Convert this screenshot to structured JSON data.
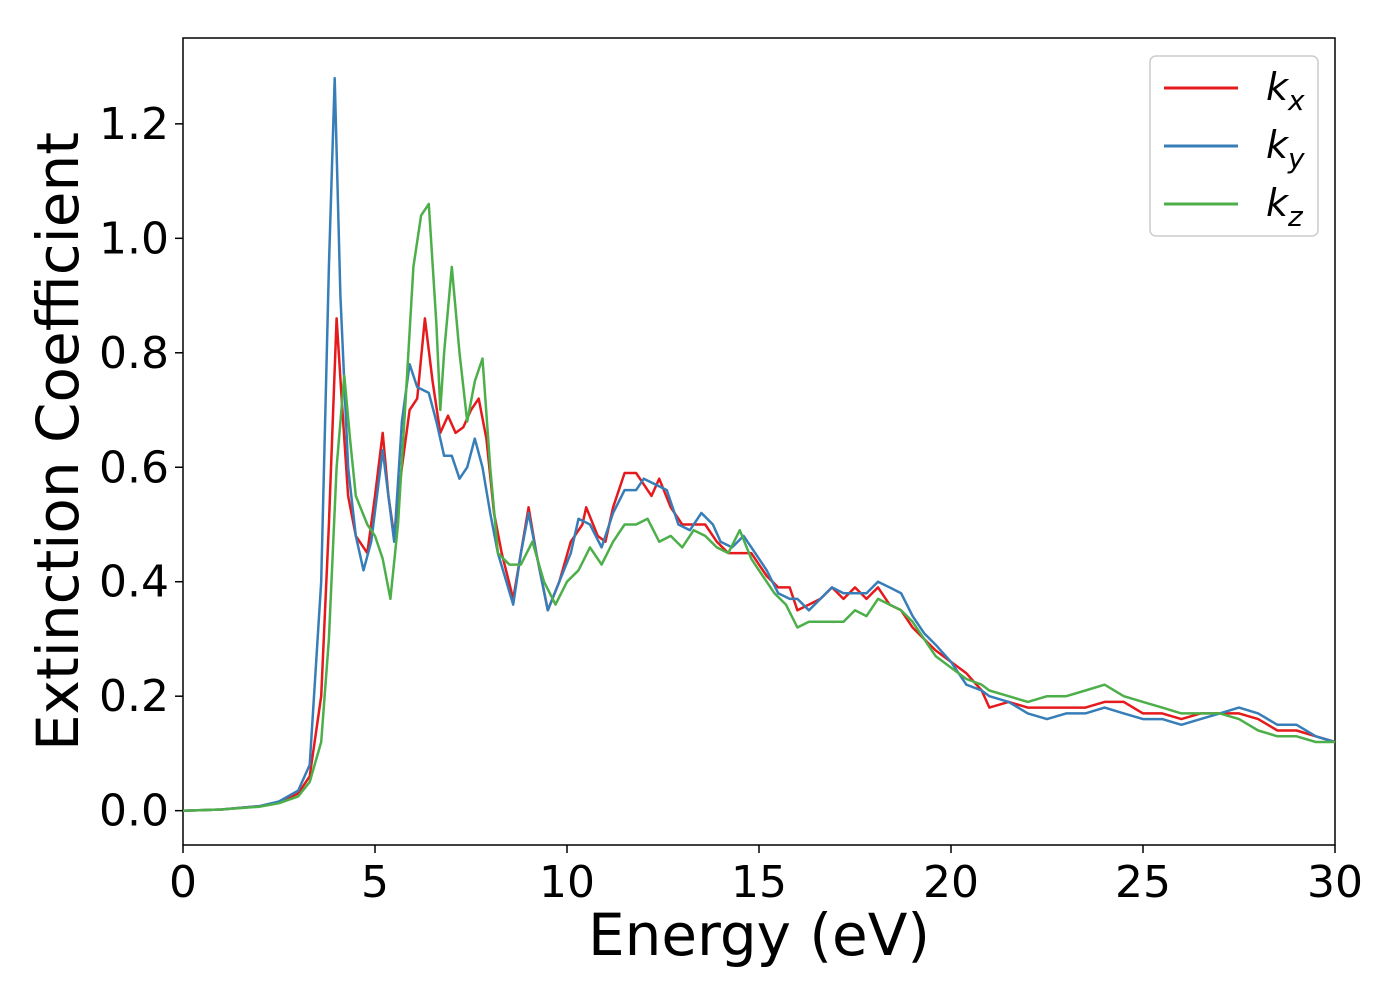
{
  "chart_data": {
    "type": "line",
    "title": "",
    "xlabel": "Energy (eV)",
    "ylabel": "Extinction Coefficient",
    "xlim": [
      0,
      30
    ],
    "ylim": [
      -0.06,
      1.35
    ],
    "xticks": [
      0,
      5,
      10,
      15,
      20,
      25,
      30
    ],
    "xtick_labels": [
      "0",
      "5",
      "10",
      "15",
      "20",
      "25",
      "30"
    ],
    "yticks": [
      0.0,
      0.2,
      0.4,
      0.6,
      0.8,
      1.0,
      1.2
    ],
    "ytick_labels": [
      "0.0",
      "0.2",
      "0.4",
      "0.6",
      "0.8",
      "1.0",
      "1.2"
    ],
    "grid": false,
    "legend_position": "top-right",
    "series": [
      {
        "name": "k",
        "subscript": "x",
        "color": "#e41a1c",
        "points": [
          [
            0,
            0.0
          ],
          [
            1,
            0.002
          ],
          [
            2,
            0.008
          ],
          [
            2.5,
            0.015
          ],
          [
            3,
            0.03
          ],
          [
            3.3,
            0.06
          ],
          [
            3.6,
            0.2
          ],
          [
            3.8,
            0.5
          ],
          [
            4.0,
            0.86
          ],
          [
            4.15,
            0.7
          ],
          [
            4.3,
            0.55
          ],
          [
            4.5,
            0.48
          ],
          [
            4.8,
            0.45
          ],
          [
            5.0,
            0.55
          ],
          [
            5.2,
            0.66
          ],
          [
            5.35,
            0.55
          ],
          [
            5.5,
            0.48
          ],
          [
            5.7,
            0.6
          ],
          [
            5.9,
            0.7
          ],
          [
            6.1,
            0.72
          ],
          [
            6.3,
            0.86
          ],
          [
            6.5,
            0.75
          ],
          [
            6.7,
            0.66
          ],
          [
            6.9,
            0.69
          ],
          [
            7.1,
            0.66
          ],
          [
            7.3,
            0.67
          ],
          [
            7.5,
            0.7
          ],
          [
            7.7,
            0.72
          ],
          [
            7.9,
            0.65
          ],
          [
            8.1,
            0.52
          ],
          [
            8.3,
            0.45
          ],
          [
            8.6,
            0.37
          ],
          [
            8.8,
            0.45
          ],
          [
            9.0,
            0.53
          ],
          [
            9.2,
            0.45
          ],
          [
            9.5,
            0.35
          ],
          [
            9.8,
            0.4
          ],
          [
            10.1,
            0.47
          ],
          [
            10.4,
            0.5
          ],
          [
            10.5,
            0.53
          ],
          [
            10.8,
            0.48
          ],
          [
            11.0,
            0.47
          ],
          [
            11.2,
            0.53
          ],
          [
            11.5,
            0.59
          ],
          [
            11.8,
            0.59
          ],
          [
            12.0,
            0.57
          ],
          [
            12.2,
            0.55
          ],
          [
            12.4,
            0.58
          ],
          [
            12.7,
            0.53
          ],
          [
            13.0,
            0.5
          ],
          [
            13.3,
            0.5
          ],
          [
            13.6,
            0.5
          ],
          [
            13.9,
            0.47
          ],
          [
            14.2,
            0.45
          ],
          [
            14.5,
            0.45
          ],
          [
            14.8,
            0.45
          ],
          [
            15.0,
            0.43
          ],
          [
            15.2,
            0.41
          ],
          [
            15.5,
            0.39
          ],
          [
            15.8,
            0.39
          ],
          [
            16.0,
            0.35
          ],
          [
            16.3,
            0.36
          ],
          [
            16.6,
            0.37
          ],
          [
            16.9,
            0.39
          ],
          [
            17.2,
            0.37
          ],
          [
            17.5,
            0.39
          ],
          [
            17.8,
            0.37
          ],
          [
            18.1,
            0.39
          ],
          [
            18.4,
            0.36
          ],
          [
            18.7,
            0.35
          ],
          [
            19.0,
            0.32
          ],
          [
            19.3,
            0.3
          ],
          [
            19.6,
            0.28
          ],
          [
            20.0,
            0.26
          ],
          [
            20.4,
            0.24
          ],
          [
            20.8,
            0.21
          ],
          [
            21.0,
            0.18
          ],
          [
            21.5,
            0.19
          ],
          [
            22.0,
            0.18
          ],
          [
            22.5,
            0.18
          ],
          [
            23.0,
            0.18
          ],
          [
            23.5,
            0.18
          ],
          [
            24.0,
            0.19
          ],
          [
            24.5,
            0.19
          ],
          [
            25.0,
            0.17
          ],
          [
            25.5,
            0.17
          ],
          [
            26.0,
            0.16
          ],
          [
            26.5,
            0.17
          ],
          [
            27.0,
            0.17
          ],
          [
            27.5,
            0.17
          ],
          [
            28.0,
            0.16
          ],
          [
            28.5,
            0.14
          ],
          [
            29.0,
            0.14
          ],
          [
            29.5,
            0.13
          ],
          [
            30.0,
            0.12
          ]
        ]
      },
      {
        "name": "k",
        "subscript": "y",
        "color": "#377eb8",
        "points": [
          [
            0,
            0.0
          ],
          [
            1,
            0.002
          ],
          [
            2,
            0.008
          ],
          [
            2.5,
            0.016
          ],
          [
            3,
            0.035
          ],
          [
            3.3,
            0.08
          ],
          [
            3.6,
            0.4
          ],
          [
            3.8,
            0.95
          ],
          [
            3.95,
            1.28
          ],
          [
            4.1,
            0.9
          ],
          [
            4.3,
            0.6
          ],
          [
            4.5,
            0.48
          ],
          [
            4.7,
            0.42
          ],
          [
            4.9,
            0.47
          ],
          [
            5.2,
            0.63
          ],
          [
            5.35,
            0.55
          ],
          [
            5.5,
            0.47
          ],
          [
            5.7,
            0.68
          ],
          [
            5.9,
            0.78
          ],
          [
            6.1,
            0.74
          ],
          [
            6.4,
            0.73
          ],
          [
            6.6,
            0.68
          ],
          [
            6.8,
            0.62
          ],
          [
            7.0,
            0.62
          ],
          [
            7.2,
            0.58
          ],
          [
            7.4,
            0.6
          ],
          [
            7.6,
            0.65
          ],
          [
            7.8,
            0.6
          ],
          [
            8.0,
            0.52
          ],
          [
            8.2,
            0.45
          ],
          [
            8.6,
            0.36
          ],
          [
            8.8,
            0.45
          ],
          [
            9.0,
            0.52
          ],
          [
            9.2,
            0.45
          ],
          [
            9.5,
            0.35
          ],
          [
            9.8,
            0.4
          ],
          [
            10.1,
            0.45
          ],
          [
            10.3,
            0.51
          ],
          [
            10.6,
            0.5
          ],
          [
            10.9,
            0.46
          ],
          [
            11.2,
            0.52
          ],
          [
            11.5,
            0.56
          ],
          [
            11.8,
            0.56
          ],
          [
            12.0,
            0.58
          ],
          [
            12.3,
            0.57
          ],
          [
            12.6,
            0.56
          ],
          [
            12.9,
            0.5
          ],
          [
            13.2,
            0.49
          ],
          [
            13.5,
            0.52
          ],
          [
            13.8,
            0.5
          ],
          [
            14.0,
            0.47
          ],
          [
            14.3,
            0.46
          ],
          [
            14.6,
            0.48
          ],
          [
            14.9,
            0.45
          ],
          [
            15.2,
            0.42
          ],
          [
            15.5,
            0.38
          ],
          [
            15.8,
            0.37
          ],
          [
            16.0,
            0.37
          ],
          [
            16.3,
            0.35
          ],
          [
            16.6,
            0.37
          ],
          [
            16.9,
            0.39
          ],
          [
            17.2,
            0.38
          ],
          [
            17.5,
            0.38
          ],
          [
            17.8,
            0.38
          ],
          [
            18.1,
            0.4
          ],
          [
            18.4,
            0.39
          ],
          [
            18.7,
            0.38
          ],
          [
            19.0,
            0.34
          ],
          [
            19.3,
            0.31
          ],
          [
            19.6,
            0.29
          ],
          [
            20.0,
            0.26
          ],
          [
            20.4,
            0.22
          ],
          [
            20.8,
            0.21
          ],
          [
            21.0,
            0.2
          ],
          [
            21.5,
            0.19
          ],
          [
            22.0,
            0.17
          ],
          [
            22.5,
            0.16
          ],
          [
            23.0,
            0.17
          ],
          [
            23.5,
            0.17
          ],
          [
            24.0,
            0.18
          ],
          [
            24.5,
            0.17
          ],
          [
            25.0,
            0.16
          ],
          [
            25.5,
            0.16
          ],
          [
            26.0,
            0.15
          ],
          [
            26.5,
            0.16
          ],
          [
            27.0,
            0.17
          ],
          [
            27.5,
            0.18
          ],
          [
            28.0,
            0.17
          ],
          [
            28.5,
            0.15
          ],
          [
            29.0,
            0.15
          ],
          [
            29.5,
            0.13
          ],
          [
            30.0,
            0.12
          ]
        ]
      },
      {
        "name": "k",
        "subscript": "z",
        "color": "#4daf4a",
        "points": [
          [
            0,
            0.0
          ],
          [
            1,
            0.002
          ],
          [
            2,
            0.007
          ],
          [
            2.5,
            0.013
          ],
          [
            3,
            0.025
          ],
          [
            3.3,
            0.05
          ],
          [
            3.6,
            0.12
          ],
          [
            3.8,
            0.3
          ],
          [
            4.0,
            0.6
          ],
          [
            4.2,
            0.76
          ],
          [
            4.35,
            0.65
          ],
          [
            4.5,
            0.55
          ],
          [
            4.8,
            0.5
          ],
          [
            5.0,
            0.48
          ],
          [
            5.2,
            0.44
          ],
          [
            5.4,
            0.37
          ],
          [
            5.6,
            0.5
          ],
          [
            5.8,
            0.72
          ],
          [
            6.0,
            0.95
          ],
          [
            6.2,
            1.04
          ],
          [
            6.4,
            1.06
          ],
          [
            6.6,
            0.85
          ],
          [
            6.7,
            0.7
          ],
          [
            6.8,
            0.8
          ],
          [
            7.0,
            0.95
          ],
          [
            7.2,
            0.8
          ],
          [
            7.4,
            0.68
          ],
          [
            7.6,
            0.75
          ],
          [
            7.8,
            0.79
          ],
          [
            8.0,
            0.6
          ],
          [
            8.2,
            0.45
          ],
          [
            8.5,
            0.43
          ],
          [
            8.8,
            0.43
          ],
          [
            9.1,
            0.47
          ],
          [
            9.4,
            0.4
          ],
          [
            9.7,
            0.36
          ],
          [
            10.0,
            0.4
          ],
          [
            10.3,
            0.42
          ],
          [
            10.6,
            0.46
          ],
          [
            10.9,
            0.43
          ],
          [
            11.2,
            0.47
          ],
          [
            11.5,
            0.5
          ],
          [
            11.8,
            0.5
          ],
          [
            12.1,
            0.51
          ],
          [
            12.4,
            0.47
          ],
          [
            12.7,
            0.48
          ],
          [
            13.0,
            0.46
          ],
          [
            13.3,
            0.49
          ],
          [
            13.6,
            0.48
          ],
          [
            13.9,
            0.46
          ],
          [
            14.2,
            0.45
          ],
          [
            14.5,
            0.49
          ],
          [
            14.8,
            0.44
          ],
          [
            15.1,
            0.41
          ],
          [
            15.4,
            0.38
          ],
          [
            15.7,
            0.36
          ],
          [
            16.0,
            0.32
          ],
          [
            16.3,
            0.33
          ],
          [
            16.6,
            0.33
          ],
          [
            16.9,
            0.33
          ],
          [
            17.2,
            0.33
          ],
          [
            17.5,
            0.35
          ],
          [
            17.8,
            0.34
          ],
          [
            18.1,
            0.37
          ],
          [
            18.4,
            0.36
          ],
          [
            18.7,
            0.35
          ],
          [
            19.0,
            0.33
          ],
          [
            19.3,
            0.3
          ],
          [
            19.6,
            0.27
          ],
          [
            20.0,
            0.25
          ],
          [
            20.4,
            0.23
          ],
          [
            20.8,
            0.22
          ],
          [
            21.0,
            0.21
          ],
          [
            21.5,
            0.2
          ],
          [
            22.0,
            0.19
          ],
          [
            22.5,
            0.2
          ],
          [
            23.0,
            0.2
          ],
          [
            23.5,
            0.21
          ],
          [
            24.0,
            0.22
          ],
          [
            24.5,
            0.2
          ],
          [
            25.0,
            0.19
          ],
          [
            25.5,
            0.18
          ],
          [
            26.0,
            0.17
          ],
          [
            26.5,
            0.17
          ],
          [
            27.0,
            0.17
          ],
          [
            27.5,
            0.16
          ],
          [
            28.0,
            0.14
          ],
          [
            28.5,
            0.13
          ],
          [
            29.0,
            0.13
          ],
          [
            29.5,
            0.12
          ],
          [
            30.0,
            0.12
          ]
        ]
      }
    ]
  }
}
